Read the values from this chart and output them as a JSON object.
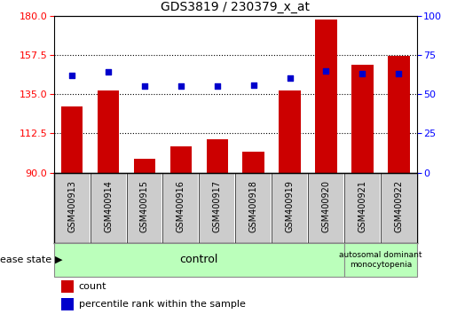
{
  "title": "GDS3819 / 230379_x_at",
  "samples": [
    "GSM400913",
    "GSM400914",
    "GSM400915",
    "GSM400916",
    "GSM400917",
    "GSM400918",
    "GSM400919",
    "GSM400920",
    "GSM400921",
    "GSM400922"
  ],
  "counts": [
    128,
    137,
    98,
    105,
    109,
    102,
    137,
    178,
    152,
    157
  ],
  "percentiles": [
    62,
    64,
    55,
    55,
    55,
    56,
    60,
    65,
    63,
    63
  ],
  "ylim_left": [
    90,
    180
  ],
  "ylim_right": [
    0,
    100
  ],
  "yticks_left": [
    90,
    112.5,
    135,
    157.5,
    180
  ],
  "yticks_right": [
    0,
    25,
    50,
    75,
    100
  ],
  "bar_color": "#cc0000",
  "dot_color": "#0000cc",
  "control_color": "#bbffbb",
  "disease_color": "#bbffbb",
  "control_label": "control",
  "disease_label": "autosomal dominant\nmonocytopenia",
  "legend_count": "count",
  "legend_pct": "percentile rank within the sample",
  "disease_state_label": "disease state",
  "background_color": "#ffffff",
  "tick_bg_color": "#cccccc"
}
